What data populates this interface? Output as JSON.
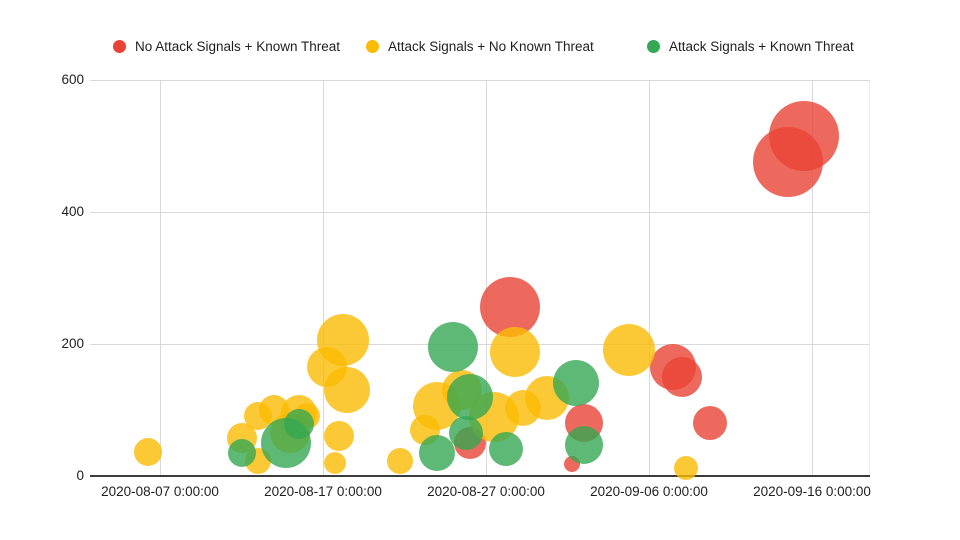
{
  "chart_data": {
    "type": "scatter",
    "variant": "bubble",
    "title": "",
    "xlabel": "",
    "ylabel": "",
    "grid": true,
    "legend_position": "top",
    "x_axis": {
      "ticks": [
        {
          "label": "2020-08-07 0:00:00",
          "date": "2020-08-07"
        },
        {
          "label": "2020-08-17 0:00:00",
          "date": "2020-08-17"
        },
        {
          "label": "2020-08-27 0:00:00",
          "date": "2020-08-27"
        },
        {
          "label": "2020-09-06 0:00:00",
          "date": "2020-09-06"
        },
        {
          "label": "2020-09-16 0:00:00",
          "date": "2020-09-16"
        }
      ],
      "min": "2020-08-03",
      "max": "2020-09-19"
    },
    "y_axis": {
      "min": 0,
      "max": 600,
      "ticks": [
        600,
        400,
        200,
        0
      ]
    },
    "series": [
      {
        "name": "No Attack Signals + Known Threat",
        "color": "#EA4335",
        "points": [
          {
            "d": "2020-09-15 12:00",
            "v": 515,
            "r": 35
          },
          {
            "d": "2020-09-14 12:00",
            "v": 475,
            "r": 35
          },
          {
            "d": "2020-08-28 12:00",
            "v": 255,
            "r": 30
          },
          {
            "d": "2020-09-07 12:00",
            "v": 165,
            "r": 23
          },
          {
            "d": "2020-09-08 00:00",
            "v": 150,
            "r": 20
          },
          {
            "d": "2020-09-02 00:00",
            "v": 80,
            "r": 19
          },
          {
            "d": "2020-09-09 18:00",
            "v": 80,
            "r": 17
          },
          {
            "d": "2020-08-26 00:00",
            "v": 50,
            "r": 16
          },
          {
            "d": "2020-09-01 06:00",
            "v": 18,
            "r": 8
          }
        ]
      },
      {
        "name": "Attack Signals + No Known Threat",
        "color": "#FBBC04",
        "points": [
          {
            "d": "2020-08-06 06:00",
            "v": 35,
            "r": 14
          },
          {
            "d": "2020-08-12 00:00",
            "v": 57,
            "r": 15
          },
          {
            "d": "2020-08-13 00:00",
            "v": 22,
            "r": 13
          },
          {
            "d": "2020-08-13 00:00",
            "v": 90,
            "r": 14
          },
          {
            "d": "2020-08-14 00:00",
            "v": 100,
            "r": 15
          },
          {
            "d": "2020-08-15 12:00",
            "v": 95,
            "r": 18
          },
          {
            "d": "2020-08-15 00:00",
            "v": 65,
            "r": 20
          },
          {
            "d": "2020-08-16 00:00",
            "v": 90,
            "r": 13
          },
          {
            "d": "2020-08-18 06:00",
            "v": 205,
            "r": 26
          },
          {
            "d": "2020-08-17 06:00",
            "v": 165,
            "r": 20
          },
          {
            "d": "2020-08-18 12:00",
            "v": 130,
            "r": 23
          },
          {
            "d": "2020-08-18 00:00",
            "v": 60,
            "r": 15
          },
          {
            "d": "2020-08-17 18:00",
            "v": 19,
            "r": 11
          },
          {
            "d": "2020-08-21 18:00",
            "v": 22,
            "r": 13
          },
          {
            "d": "2020-08-24 00:00",
            "v": 106,
            "r": 24
          },
          {
            "d": "2020-08-23 06:00",
            "v": 69,
            "r": 15
          },
          {
            "d": "2020-08-25 12:00",
            "v": 130,
            "r": 20
          },
          {
            "d": "2020-08-27 12:00",
            "v": 89,
            "r": 25
          },
          {
            "d": "2020-08-29 06:00",
            "v": 103,
            "r": 18
          },
          {
            "d": "2020-08-28 18:00",
            "v": 188,
            "r": 25
          },
          {
            "d": "2020-08-30 18:00",
            "v": 118,
            "r": 22
          },
          {
            "d": "2020-09-04 18:00",
            "v": 191,
            "r": 26
          },
          {
            "d": "2020-09-08 06:00",
            "v": 11,
            "r": 12
          }
        ]
      },
      {
        "name": "Attack Signals + Known Threat",
        "color": "#34A853",
        "points": [
          {
            "d": "2020-08-12 00:00",
            "v": 34,
            "r": 14
          },
          {
            "d": "2020-08-14 18:00",
            "v": 50,
            "r": 25
          },
          {
            "d": "2020-08-15 12:00",
            "v": 78,
            "r": 15
          },
          {
            "d": "2020-08-25 00:00",
            "v": 195,
            "r": 25
          },
          {
            "d": "2020-08-26 00:00",
            "v": 119,
            "r": 23
          },
          {
            "d": "2020-08-25 18:00",
            "v": 65,
            "r": 17
          },
          {
            "d": "2020-08-24 00:00",
            "v": 34,
            "r": 18
          },
          {
            "d": "2020-08-28 06:00",
            "v": 40,
            "r": 17
          },
          {
            "d": "2020-09-01 12:00",
            "v": 140,
            "r": 23
          },
          {
            "d": "2020-09-02 00:00",
            "v": 46,
            "r": 19
          }
        ]
      }
    ]
  }
}
